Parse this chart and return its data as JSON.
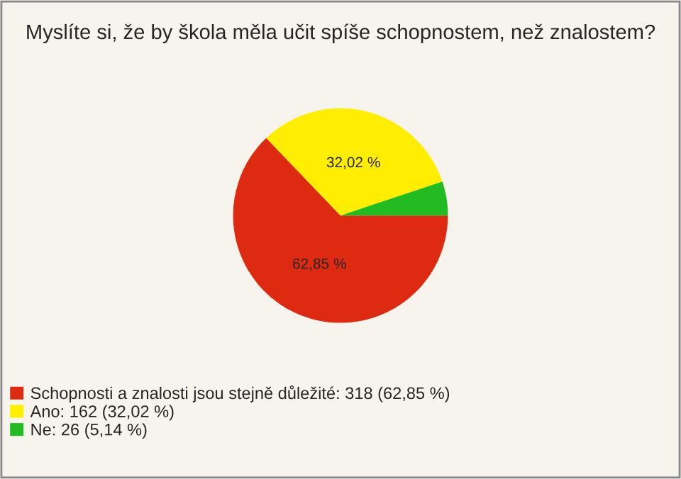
{
  "chart_data": {
    "type": "pie",
    "title": "Myslíte si, že by škola měla učit spíše schopnostem, než znalostem?",
    "categories": [
      "Schopnosti a znalosti jsou stejně důležité: 318 (62,85 %)",
      "Ano: 162 (32,02 %)",
      "Ne: 26 (5,14 %)"
    ],
    "values": [
      62.85,
      32.02,
      5.14
    ],
    "value_labels": [
      "62,85 %",
      "32,02 %",
      null
    ],
    "colors": [
      "#dd2a10",
      "#ffee00",
      "#22bb22"
    ],
    "legend": "bottom left"
  }
}
